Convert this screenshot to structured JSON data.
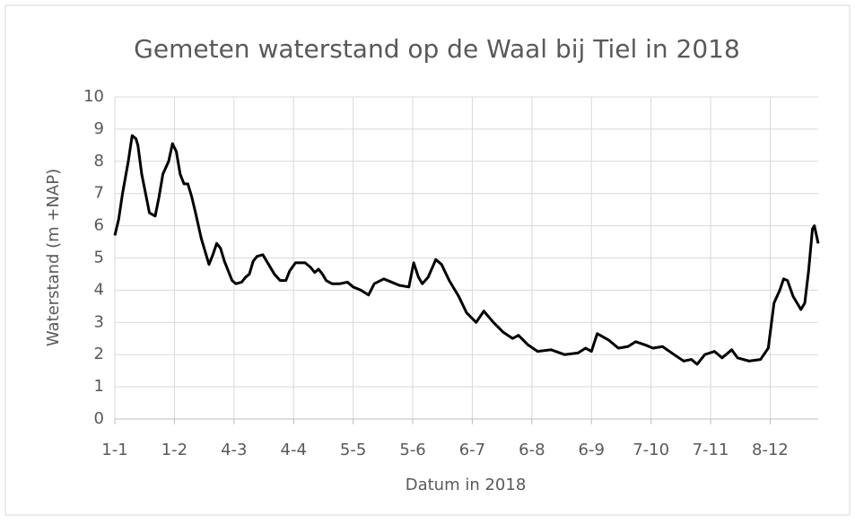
{
  "chart_data": {
    "type": "line",
    "title": "Gemeten waterstand op de Waal bij Tiel in 2018",
    "xlabel": "Datum in 2018",
    "ylabel": "Waterstand (m +NAP)",
    "x": [
      0,
      2,
      4,
      7,
      9,
      11,
      12,
      14,
      16,
      18,
      21,
      23,
      25,
      28,
      30,
      32,
      34,
      36,
      38,
      40,
      42,
      45,
      49,
      51,
      53,
      55,
      57,
      59,
      61,
      63,
      66,
      68,
      70,
      72,
      74,
      77,
      80,
      83,
      86,
      89,
      91,
      94,
      99,
      102,
      104,
      106,
      108,
      110,
      113,
      117,
      121,
      124,
      128,
      132,
      135,
      140,
      144,
      148,
      153,
      155.5,
      158,
      160,
      163,
      167,
      170,
      174,
      179,
      183,
      188,
      192,
      197,
      202,
      207,
      210,
      215,
      220,
      227,
      234,
      241,
      245,
      248,
      251,
      257,
      262,
      267,
      271,
      276,
      280,
      285,
      291,
      296,
      300,
      303,
      307,
      312,
      316,
      321,
      324,
      330,
      336,
      340,
      343,
      346,
      348,
      350,
      353,
      357,
      359,
      361,
      363,
      364,
      366
    ],
    "series": [
      {
        "name": "Waterstand",
        "color": "#000000",
        "values": [
          5.7,
          6.2,
          7.0,
          8.0,
          8.8,
          8.7,
          8.5,
          7.6,
          7.0,
          6.4,
          6.3,
          6.9,
          7.6,
          8.0,
          8.55,
          8.3,
          7.6,
          7.3,
          7.3,
          6.9,
          6.4,
          5.6,
          4.8,
          5.1,
          5.45,
          5.3,
          4.9,
          4.6,
          4.3,
          4.2,
          4.25,
          4.4,
          4.5,
          4.9,
          5.05,
          5.1,
          4.8,
          4.5,
          4.3,
          4.3,
          4.6,
          4.85,
          4.85,
          4.7,
          4.55,
          4.65,
          4.5,
          4.3,
          4.2,
          4.2,
          4.25,
          4.1,
          4.0,
          3.85,
          4.2,
          4.35,
          4.25,
          4.15,
          4.1,
          4.85,
          4.4,
          4.2,
          4.4,
          4.95,
          4.8,
          4.3,
          3.8,
          3.3,
          3.0,
          3.35,
          3.0,
          2.7,
          2.5,
          2.6,
          2.3,
          2.1,
          2.15,
          2.0,
          2.05,
          2.2,
          2.1,
          2.65,
          2.45,
          2.2,
          2.25,
          2.4,
          2.3,
          2.2,
          2.25,
          2.0,
          1.8,
          1.85,
          1.7,
          2.0,
          2.1,
          1.9,
          2.15,
          1.9,
          1.8,
          1.85,
          2.2,
          3.6,
          4.0,
          4.35,
          4.3,
          3.8,
          3.4,
          3.6,
          4.6,
          5.9,
          6.0,
          5.45
        ]
      }
    ],
    "xlim": [
      0,
      366
    ],
    "xticks": [
      {
        "value": 0,
        "label": "1-1"
      },
      {
        "value": 31,
        "label": "1-2"
      },
      {
        "value": 62,
        "label": "4-3"
      },
      {
        "value": 93,
        "label": "4-4"
      },
      {
        "value": 124,
        "label": "5-5"
      },
      {
        "value": 155,
        "label": "5-6"
      },
      {
        "value": 186,
        "label": "6-7"
      },
      {
        "value": 217,
        "label": "6-8"
      },
      {
        "value": 248,
        "label": "6-9"
      },
      {
        "value": 279,
        "label": "7-10"
      },
      {
        "value": 310,
        "label": "7-11"
      },
      {
        "value": 341,
        "label": "8-12"
      }
    ],
    "ylim": [
      0,
      10
    ],
    "yticks": [
      0,
      1,
      2,
      3,
      4,
      5,
      6,
      7,
      8,
      9,
      10
    ],
    "grid": true
  }
}
